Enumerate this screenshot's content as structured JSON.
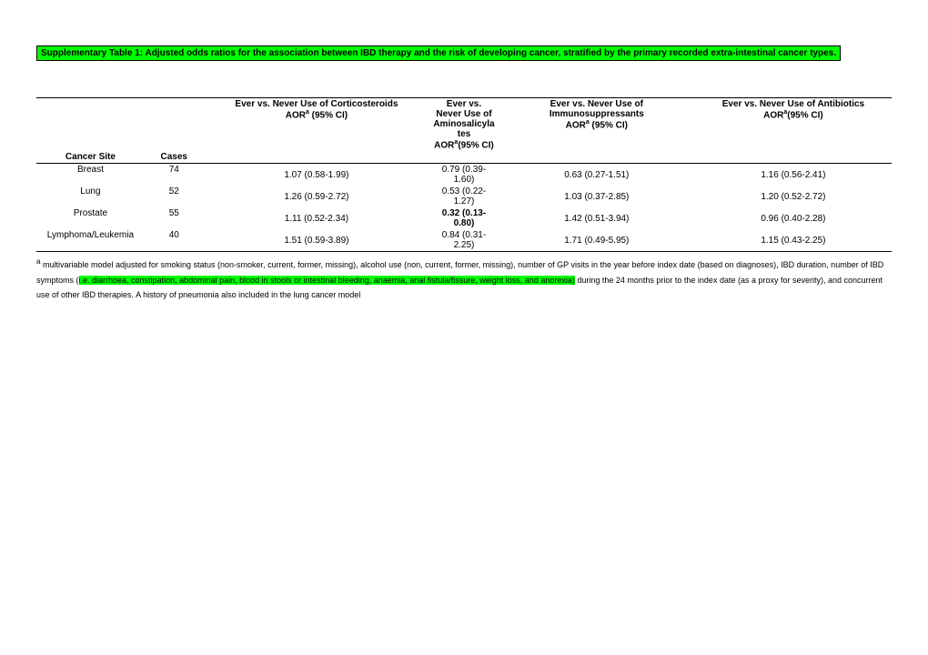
{
  "title": "Supplementary Table 1: Adjusted odds ratios for the association between IBD therapy and the risk of developing cancer, stratified by the primary recorded extra-intestinal cancer types.",
  "headers": {
    "cortico": "Ever vs. Never Use of Corticosteroids",
    "cortico_sub_a": "AOR",
    "cortico_sub_b": " (95% CI)",
    "amino": "Ever vs. Never Use of Aminosalicylates",
    "amino_sub_a": "AOR",
    "amino_sub_b": "(95% CI)",
    "immuno": "Ever vs. Never Use of Immunosuppressants",
    "immuno_sub_a": "AOR",
    "immuno_sub_b": " (95% CI)",
    "antibio": "Ever vs. Never Use of Antibiotics",
    "antibio_sub_a": "AOR",
    "antibio_sub_b": "(95% CI)",
    "site": "Cancer Site",
    "cases": "Cases"
  },
  "rows": [
    {
      "site": "Breast",
      "cases": "74",
      "cortico": "1.07 (0.58-1.99)",
      "amino": "0.79 (0.39-1.60)",
      "immuno": "0.63 (0.27-1.51)",
      "antibio": "1.16 (0.56-2.41)"
    },
    {
      "site": "Lung",
      "cases": "52",
      "cortico": "1.26 (0.59-2.72)",
      "amino": "0.53 (0.22-1.27)",
      "immuno": "1.03 (0.37-2.85)",
      "antibio": "1.20 (0.52-2.72)"
    },
    {
      "site": "Prostate",
      "cases": "55",
      "cortico": "1.11 (0.52-2.34)",
      "amino_bold": "0.32 (0.13-0.80)",
      "immuno": "1.42 (0.51-3.94)",
      "antibio": "0.96 (0.40-2.28)"
    },
    {
      "site": "Lymphoma/Leukemia",
      "cases": "40",
      "cortico": "1.51 (0.59-3.89)",
      "amino": "0.84 (0.31-2.25)",
      "immuno": "1.71 (0.49-5.95)",
      "antibio": "1.15 (0.43-2.25)"
    }
  ],
  "footnote": {
    "pre": " multivariable model adjusted for smoking status (non-smoker, current, former, missing), alcohol use (non, current, former, missing), number of GP visits in the year before index date (based on diagnoses), IBD duration, number of IBD symptoms (",
    "highlight": "i.e. diarrhoea, constipation, abdominal pain, blood in stools or intestinal bleeding, anaemia, anal fistula/fissure, weight loss, and anorexia)",
    "post": " during the 24 months prior to the index date (as a proxy for severity),  and concurrent use of other IBD therapies. A history of pneumonia also included in the lung cancer model"
  }
}
